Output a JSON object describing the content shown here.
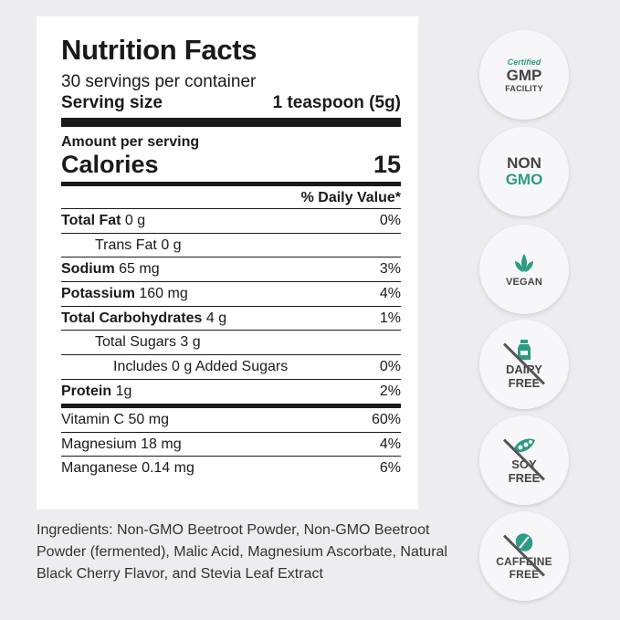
{
  "label": {
    "title": "Nutrition Facts",
    "servings": "30 servings per container",
    "serving_size_label": "Serving size",
    "serving_size_value": "1 teaspoon (5g)",
    "amount_per_serving": "Amount per serving",
    "calories_label": "Calories",
    "calories_value": "15",
    "dv_header": "% Daily Value*",
    "rows": [
      {
        "bold": "Total Fat",
        "rest": " 0 g",
        "pct": "0%"
      },
      {
        "bold": "",
        "rest": "Trans Fat  0 g",
        "pct": ""
      },
      {
        "bold": "Sodium",
        "rest": " 65 mg",
        "pct": "3%"
      },
      {
        "bold": "Potassium",
        "rest": " 160 mg",
        "pct": "4%"
      },
      {
        "bold": "Total Carbohydrates",
        "rest": " 4 g",
        "pct": "1%"
      },
      {
        "bold": "",
        "rest": "Total Sugars  3 g",
        "pct": ""
      },
      {
        "bold": "",
        "rest": "Includes 0 g Added Sugars",
        "pct": "0%"
      },
      {
        "bold": "Protein",
        "rest": " 1g",
        "pct": "2%"
      },
      {
        "bold": "",
        "rest": "Vitamin C  50 mg",
        "pct": "60%"
      },
      {
        "bold": "",
        "rest": "Magnesium  18 mg",
        "pct": "4%"
      },
      {
        "bold": "",
        "rest": "Manganese  0.14 mg",
        "pct": "6%"
      }
    ]
  },
  "ingredients": "Ingredients: Non-GMO Beetroot Powder, Non-GMO Beetroot Powder (fermented), Malic Acid, Magnesium Ascorbate, Natural Black Cherry Flavor, and Stevia Leaf Extract",
  "badges": {
    "gmp": {
      "top": "Certified",
      "mid": "GMP",
      "bottom": "FACILITY"
    },
    "nongmo": {
      "line1": "NON",
      "line2": "GMO"
    },
    "vegan": {
      "label": "VEGAN",
      "icon": "leaf-icon"
    },
    "dairy": {
      "line1": "DAIRY",
      "line2": "FREE",
      "icon": "milk-bottle-icon"
    },
    "soy": {
      "line1": "SOY",
      "line2": "FREE",
      "icon": "soybean-icon"
    },
    "caffeine": {
      "line1": "CAFFEINE",
      "line2": "FREE",
      "icon": "coffee-bean-icon"
    }
  },
  "colors": {
    "accent": "#2c9c84",
    "background": "#ededf0"
  }
}
